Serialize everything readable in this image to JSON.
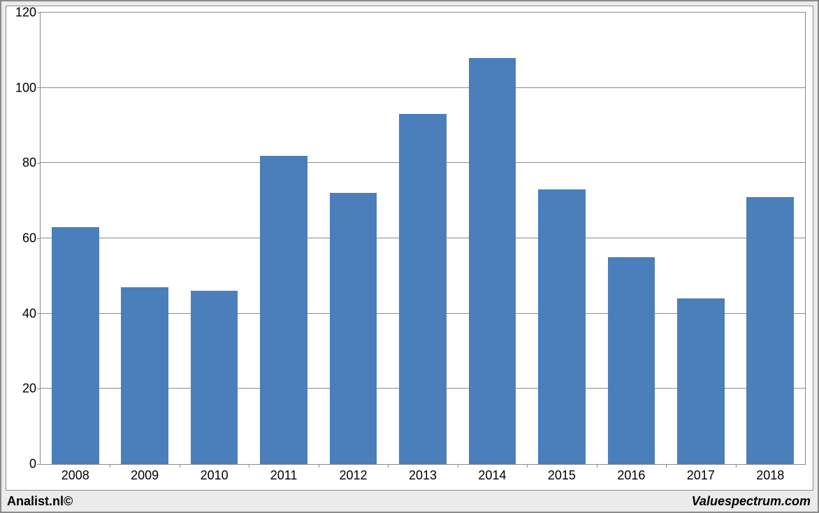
{
  "chart": {
    "type": "bar",
    "categories": [
      "2008",
      "2009",
      "2010",
      "2011",
      "2012",
      "2013",
      "2014",
      "2015",
      "2016",
      "2017",
      "2018"
    ],
    "values": [
      63,
      47,
      46,
      82,
      72,
      93,
      108,
      73,
      55,
      44,
      71
    ],
    "bar_color": "#4a7fbb",
    "background_color": "#ffffff",
    "grid_color": "#8a8a8a",
    "outer_background": "#ebebeb",
    "ylim": [
      0,
      120
    ],
    "ytick_step": 20,
    "yticks": [
      "0",
      "20",
      "40",
      "60",
      "80",
      "100",
      "120"
    ],
    "tick_fontsize": 18,
    "bar_width_ratio": 0.68
  },
  "footer": {
    "left": "Analist.nl©",
    "right": "Valuespectrum.com"
  }
}
